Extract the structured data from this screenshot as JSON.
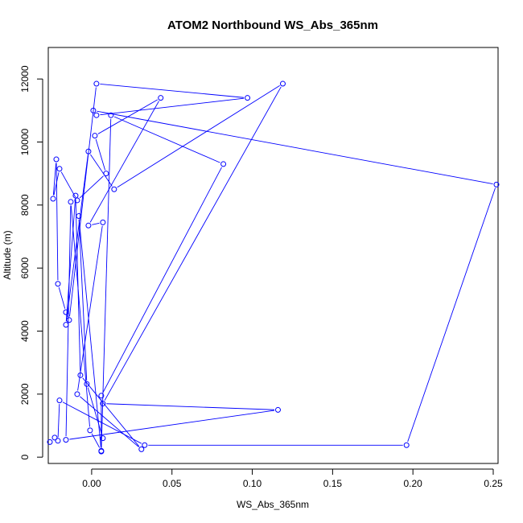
{
  "chart_data": {
    "type": "line",
    "title": "ATOM2 Northbound WS_Abs_365nm",
    "xlabel": "WS_Abs_365nm",
    "ylabel": "Altitude (m)",
    "xlim": [
      -0.027,
      0.253
    ],
    "ylim": [
      -200,
      13000
    ],
    "x_ticks": [
      {
        "value": 0.0,
        "label": "0.00"
      },
      {
        "value": 0.05,
        "label": "0.05"
      },
      {
        "value": 0.1,
        "label": "0.10"
      },
      {
        "value": 0.15,
        "label": "0.15"
      },
      {
        "value": 0.2,
        "label": "0.20"
      },
      {
        "value": 0.25,
        "label": "0.25"
      }
    ],
    "y_ticks": [
      {
        "value": 0,
        "label": "0"
      },
      {
        "value": 2000,
        "label": "2000"
      },
      {
        "value": 4000,
        "label": "4000"
      },
      {
        "value": 6000,
        "label": "6000"
      },
      {
        "value": 8000,
        "label": "8000"
      },
      {
        "value": 10000,
        "label": "10000"
      },
      {
        "value": 12000,
        "label": "12000"
      }
    ],
    "series_color": "#0000FF",
    "marker": "open-circle",
    "grid": false,
    "legend": "none",
    "series": [
      {
        "x": [
          -0.026,
          -0.023,
          -0.021,
          -0.02,
          0.033,
          0.196,
          0.252,
          0.001,
          0.003,
          0.097,
          0.003,
          -0.014,
          -0.016,
          -0.021,
          -0.022,
          -0.024,
          -0.02,
          -0.009,
          0.009,
          0.002,
          0.043,
          -0.002,
          0.007,
          -0.009,
          0.031,
          -0.007,
          -0.01,
          -0.016,
          -0.002,
          0.014,
          0.119,
          0.007,
          0.116,
          -0.016,
          -0.013,
          -0.001,
          0.006,
          0.006,
          0.082,
          0.012,
          0.006,
          -0.008,
          -0.003,
          0.007
        ],
        "y": [
          480,
          620,
          520,
          1800,
          380,
          380,
          8650,
          11000,
          10850,
          11400,
          11850,
          4350,
          4600,
          5500,
          9450,
          8200,
          9150,
          8150,
          9000,
          10200,
          11400,
          7350,
          7450,
          2000,
          250,
          2600,
          8300,
          4200,
          9700,
          8500,
          11850,
          1700,
          1500,
          550,
          8100,
          850,
          200,
          1950,
          9300,
          10850,
          180,
          7650,
          2320,
          600
        ]
      }
    ]
  }
}
